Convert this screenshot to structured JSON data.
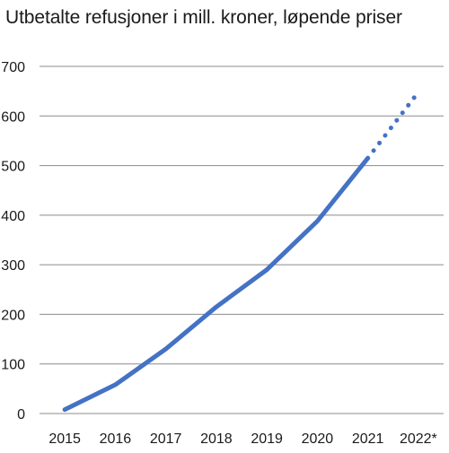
{
  "chart_data": {
    "type": "line",
    "title": "Utbetalte refusjoner i mill. kroner, løpende priser",
    "xlabel": "",
    "ylabel": "",
    "categories": [
      "2015",
      "2016",
      "2017",
      "2018",
      "2019",
      "2020",
      "2021",
      "2022*"
    ],
    "ylim": [
      0,
      700
    ],
    "yticks": [
      0,
      100,
      200,
      300,
      400,
      500,
      600,
      700
    ],
    "grid": true,
    "legend": "none",
    "series": [
      {
        "values": [
          8,
          58,
          130,
          215,
          290,
          388,
          515,
          null
        ],
        "style": "solid",
        "color": "#4472c4"
      },
      {
        "values": [
          null,
          null,
          null,
          null,
          null,
          null,
          515,
          648
        ],
        "style": "dotted",
        "color": "#4472c4"
      }
    ],
    "colors": {
      "line": "#4472c4",
      "grid": "#8c8c8c",
      "text": "#1a1a1a"
    }
  }
}
